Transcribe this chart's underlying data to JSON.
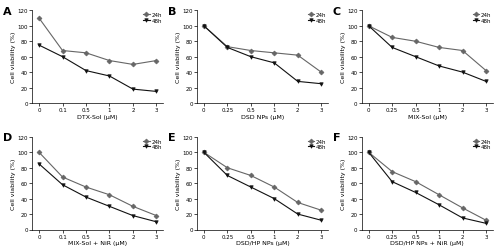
{
  "panels": [
    {
      "label": "A",
      "xlabel": "DTX-Sol (μM)",
      "x_labels": [
        "0",
        "0.1",
        "0.5",
        "1",
        "2",
        "3"
      ],
      "y_24h": [
        110,
        68,
        65,
        55,
        50,
        55
      ],
      "y_48h": [
        75,
        60,
        42,
        35,
        18,
        15
      ]
    },
    {
      "label": "B",
      "xlabel": "DSD NPs (μM)",
      "x_labels": [
        "0",
        "0.25",
        "0.5",
        "1",
        "2",
        "3"
      ],
      "y_24h": [
        100,
        73,
        68,
        65,
        62,
        40
      ],
      "y_48h": [
        100,
        72,
        60,
        52,
        28,
        25
      ]
    },
    {
      "label": "C",
      "xlabel": "MIX-Sol (μM)",
      "x_labels": [
        "0",
        "0.25",
        "0.5",
        "1",
        "2",
        "3"
      ],
      "y_24h": [
        100,
        85,
        80,
        72,
        68,
        42
      ],
      "y_48h": [
        100,
        72,
        60,
        48,
        40,
        28
      ]
    },
    {
      "label": "D",
      "xlabel": "MIX-Sol + NiR (μM)",
      "x_labels": [
        "0",
        "0.1",
        "0.5",
        "1",
        "2",
        "3"
      ],
      "y_24h": [
        100,
        68,
        55,
        45,
        30,
        18
      ],
      "y_48h": [
        85,
        58,
        42,
        30,
        18,
        10
      ]
    },
    {
      "label": "E",
      "xlabel": "DSD/HP NPs (μM)",
      "x_labels": [
        "0",
        "0.25",
        "0.5",
        "1",
        "2",
        "3"
      ],
      "y_24h": [
        100,
        80,
        70,
        55,
        35,
        25
      ],
      "y_48h": [
        100,
        70,
        55,
        40,
        20,
        12
      ]
    },
    {
      "label": "F",
      "xlabel": "DSD/HP NPs + NiR (μM)",
      "x_labels": [
        "0",
        "0.25",
        "0.5",
        "1",
        "2",
        "3"
      ],
      "y_24h": [
        100,
        75,
        62,
        45,
        28,
        12
      ],
      "y_48h": [
        100,
        62,
        48,
        32,
        15,
        8
      ]
    }
  ],
  "ylabel": "Cell viability (%)",
  "legend_24h": "24h",
  "legend_48h": "48h",
  "ylim": [
    0,
    120
  ],
  "yticks": [
    0,
    20,
    40,
    60,
    80,
    100,
    120
  ],
  "color_24h": "#666666",
  "color_48h": "#111111",
  "marker_24h": "D",
  "marker_48h": "v",
  "linewidth": 0.8,
  "markersize": 2.5,
  "fontsize_label": 4.5,
  "fontsize_tick": 4.0,
  "fontsize_legend": 4.0,
  "fontsize_panel_label": 8,
  "background": "#ffffff"
}
